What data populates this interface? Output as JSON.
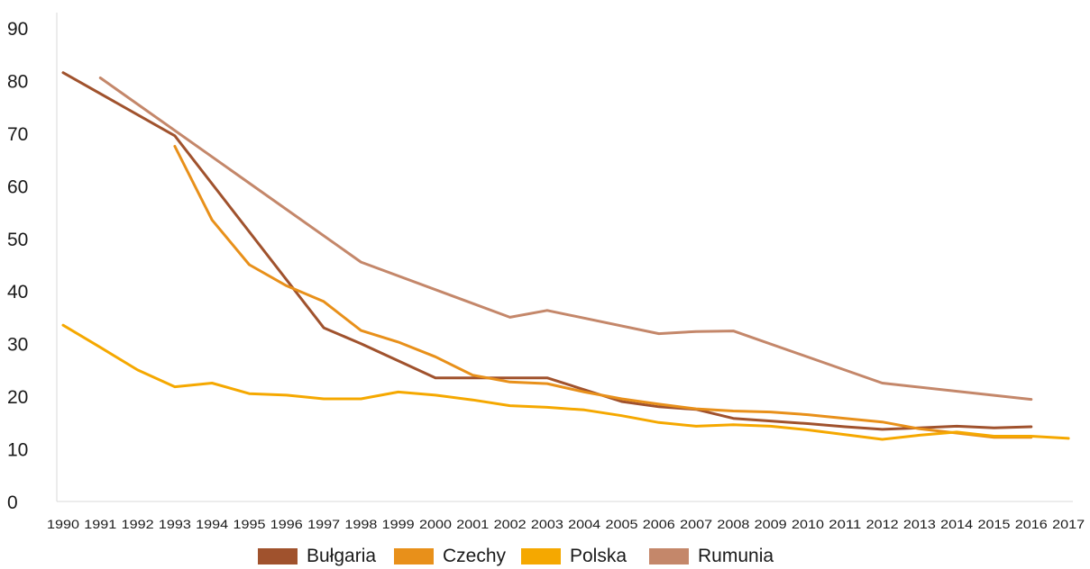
{
  "chart_data": {
    "type": "line",
    "title": "",
    "xlabel": "",
    "ylabel": "",
    "ylim": [
      0,
      90
    ],
    "y_ticks": [
      0,
      10,
      20,
      30,
      40,
      50,
      60,
      70,
      80,
      90
    ],
    "x": [
      "1990",
      "1991",
      "1992",
      "1993",
      "1994",
      "1995",
      "1996",
      "1997",
      "1998",
      "1999",
      "2000",
      "2001",
      "2002",
      "2003",
      "2004",
      "2005",
      "2006",
      "2007",
      "2008",
      "2009",
      "2010",
      "2011",
      "2012",
      "2013",
      "2014",
      "2015",
      "2016",
      "2017"
    ],
    "grid": false,
    "legend_position": "bottom",
    "series": [
      {
        "name": "Bułgaria",
        "color": "#A0522D",
        "values": [
          81.5,
          null,
          null,
          69.5,
          null,
          null,
          null,
          33,
          30,
          null,
          23.5,
          23.5,
          23.5,
          23.5,
          null,
          19,
          18,
          17.5,
          15.8,
          15.3,
          14.8,
          14.2,
          13.7,
          14,
          14.3,
          14,
          14.2,
          null
        ]
      },
      {
        "name": "Czechy",
        "color": "#E8901A",
        "values": [
          null,
          null,
          null,
          67.5,
          53.5,
          45,
          41,
          38,
          32.5,
          30.3,
          27.5,
          24,
          22.7,
          22.4,
          20.8,
          19.5,
          18.5,
          17.6,
          17.2,
          17,
          16.5,
          15.8,
          15.1,
          13.8,
          13,
          12.2,
          12.2,
          null
        ]
      },
      {
        "name": "Polska",
        "color": "#F5A800",
        "values": [
          33.5,
          29.3,
          25,
          21.8,
          22.5,
          20.5,
          20.2,
          19.5,
          19.5,
          20.8,
          20.2,
          19.3,
          18.2,
          17.9,
          17.4,
          16.3,
          15,
          14.3,
          14.6,
          14.3,
          13.6,
          12.7,
          11.8,
          12.6,
          13.2,
          12.4,
          12.4,
          12
        ]
      },
      {
        "name": "Rumunia",
        "color": "#C4876A",
        "values": [
          null,
          80.5,
          null,
          null,
          null,
          null,
          null,
          null,
          45.5,
          null,
          null,
          null,
          35,
          36.3,
          null,
          null,
          31.9,
          32.3,
          32.4,
          null,
          null,
          null,
          22.5,
          null,
          null,
          null,
          19.4,
          null
        ]
      }
    ]
  }
}
